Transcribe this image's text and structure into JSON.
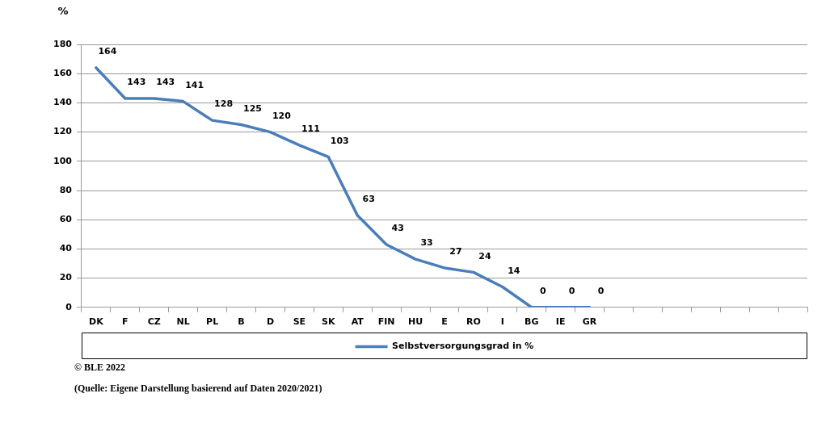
{
  "chart_data": {
    "type": "line",
    "ylabel": "%",
    "categories": [
      "DK",
      "F",
      "CZ",
      "NL",
      "PL",
      "B",
      "D",
      "SE",
      "SK",
      "AT",
      "FIN",
      "HU",
      "E",
      "RO",
      "I",
      "BG",
      "IE",
      "GR",
      null,
      null,
      null,
      null,
      null,
      null,
      null
    ],
    "series": [
      {
        "name": "Selbstversorgungsgrad in %",
        "color": "#4a7ebb",
        "values": [
          164,
          143,
          143,
          141,
          128,
          125,
          120,
          111,
          103,
          63,
          43,
          33,
          27,
          24,
          14,
          0,
          0,
          0,
          null,
          null,
          null,
          null,
          null,
          null,
          null
        ]
      }
    ],
    "ylim": [
      0,
      180
    ],
    "yticks": [
      0,
      20,
      40,
      60,
      80,
      100,
      120,
      140,
      160,
      180
    ],
    "grid": "y",
    "legend": "bottom",
    "marker": "none",
    "line_style": "solid",
    "data_labels": true,
    "annotations": [
      "© BLE  2022",
      "(Quelle: Eigene Darstellung basierend auf Daten 2020/2021)"
    ]
  }
}
